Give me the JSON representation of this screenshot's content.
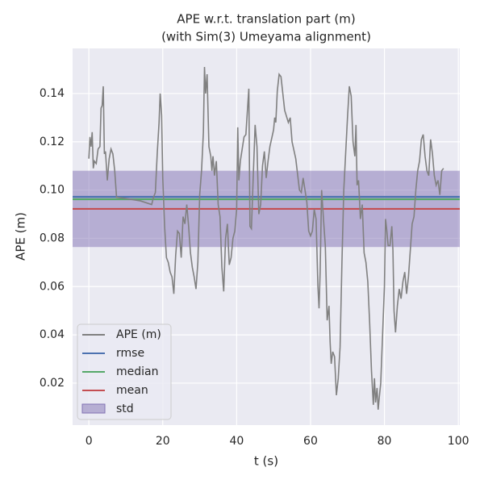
{
  "chart_data": {
    "type": "line",
    "title": "APE w.r.t. translation part (m)",
    "subtitle": "(with Sim(3) Umeyama alignment)",
    "xlabel": "t (s)",
    "ylabel": "APE (m)",
    "xlim": [
      -4.4,
      100.4
    ],
    "ylim": [
      0.0026,
      0.1587
    ],
    "xticks": [
      0,
      20,
      40,
      60,
      80,
      100
    ],
    "yticks": [
      0.02,
      0.04,
      0.06,
      0.08,
      {
        "value": 0.1,
        "label": "0.10"
      },
      0.12,
      0.14
    ],
    "grid": true,
    "legend": "lower left",
    "x": [
      0,
      0.3,
      0.6,
      0.9,
      1.2,
      1.5,
      2,
      2.5,
      3,
      3.3,
      3.6,
      3.9,
      4.2,
      4.5,
      5,
      5.5,
      6,
      6.5,
      7,
      7.5,
      10,
      14,
      17,
      17.5,
      18,
      18.5,
      19,
      19.3,
      19.7,
      20,
      20.5,
      21,
      21.5,
      22,
      22.5,
      23,
      23.5,
      24,
      24.5,
      25,
      25.5,
      26,
      26.5,
      27,
      27.5,
      28,
      28.5,
      29,
      29.5,
      30,
      30.5,
      31,
      31.3,
      31.6,
      32,
      32.5,
      33,
      33.3,
      33.6,
      34,
      34.5,
      35,
      35.5,
      36,
      36.5,
      37,
      37.5,
      38,
      38.5,
      39,
      39.5,
      40,
      40.3,
      40.6,
      41,
      41.5,
      42,
      42.5,
      43,
      43.3,
      43.6,
      44,
      44.5,
      45,
      45.5,
      46,
      46.5,
      47,
      47.5,
      48,
      48.5,
      49,
      50,
      50.3,
      50.6,
      51,
      51.5,
      52,
      52.5,
      53,
      54,
      54.5,
      55,
      56,
      57,
      57.5,
      58,
      58.5,
      59,
      59.5,
      60,
      60.5,
      61,
      61.5,
      62,
      62.3,
      62.6,
      63,
      63.5,
      64,
      64.5,
      65,
      65.3,
      65.6,
      66,
      66.5,
      67,
      67.5,
      68,
      68.5,
      69,
      69.5,
      70,
      70.5,
      71,
      71.5,
      72,
      72.3,
      72.6,
      73,
      73.5,
      74,
      74.5,
      75,
      75.5,
      76,
      76.5,
      77,
      77.3,
      77.6,
      78,
      78.3,
      78.6,
      79,
      79.5,
      80,
      80.3,
      80.6,
      81,
      81.5,
      82,
      82.3,
      82.6,
      83,
      83.5,
      84,
      84.5,
      85,
      85.5,
      86,
      86.5,
      87,
      87.5,
      88,
      88.5,
      89,
      89.5,
      90,
      90.5,
      91,
      91.5,
      92,
      92.5,
      93,
      93.5,
      94,
      94.5,
      95,
      95.5,
      96
    ],
    "series": [
      {
        "name": "APE (m)",
        "color": "#808080",
        "values": [
          0.113,
          0.122,
          0.118,
          0.124,
          0.109,
          0.112,
          0.111,
          0.117,
          0.118,
          0.134,
          0.135,
          0.143,
          0.115,
          0.116,
          0.104,
          0.113,
          0.117,
          0.115,
          0.108,
          0.097,
          0.0965,
          0.0955,
          0.094,
          0.097,
          0.099,
          0.115,
          0.128,
          0.14,
          0.131,
          0.105,
          0.085,
          0.072,
          0.07,
          0.066,
          0.064,
          0.057,
          0.073,
          0.083,
          0.082,
          0.072,
          0.089,
          0.086,
          0.094,
          0.085,
          0.074,
          0.068,
          0.064,
          0.059,
          0.07,
          0.098,
          0.108,
          0.124,
          0.151,
          0.14,
          0.148,
          0.118,
          0.114,
          0.108,
          0.114,
          0.106,
          0.112,
          0.094,
          0.089,
          0.068,
          0.058,
          0.08,
          0.086,
          0.069,
          0.072,
          0.08,
          0.083,
          0.092,
          0.126,
          0.104,
          0.112,
          0.117,
          0.122,
          0.123,
          0.135,
          0.142,
          0.085,
          0.084,
          0.106,
          0.127,
          0.118,
          0.09,
          0.094,
          0.11,
          0.116,
          0.105,
          0.112,
          0.118,
          0.125,
          0.13,
          0.128,
          0.141,
          0.148,
          0.147,
          0.14,
          0.133,
          0.128,
          0.13,
          0.12,
          0.113,
          0.1,
          0.099,
          0.105,
          0.1,
          0.095,
          0.083,
          0.081,
          0.083,
          0.092,
          0.088,
          0.06,
          0.051,
          0.066,
          0.1,
          0.088,
          0.077,
          0.046,
          0.052,
          0.037,
          0.028,
          0.033,
          0.031,
          0.015,
          0.022,
          0.035,
          0.07,
          0.1,
          0.115,
          0.13,
          0.143,
          0.139,
          0.12,
          0.114,
          0.127,
          0.102,
          0.104,
          0.088,
          0.094,
          0.074,
          0.07,
          0.062,
          0.045,
          0.025,
          0.011,
          0.022,
          0.012,
          0.018,
          0.009,
          0.014,
          0.02,
          0.04,
          0.06,
          0.088,
          0.084,
          0.077,
          0.077,
          0.085,
          0.075,
          0.05,
          0.041,
          0.052,
          0.059,
          0.055,
          0.062,
          0.066,
          0.057,
          0.064,
          0.075,
          0.086,
          0.089,
          0.1,
          0.108,
          0.112,
          0.121,
          0.123,
          0.114,
          0.108,
          0.106,
          0.121,
          0.115,
          0.106,
          0.102,
          0.104,
          0.098,
          0.108,
          0.109
        ]
      }
    ],
    "stats": [
      {
        "name": "rmse",
        "color": "#4c72b0",
        "value": 0.0972
      },
      {
        "name": "median",
        "color": "#55a868",
        "value": 0.0962
      },
      {
        "name": "mean",
        "color": "#c44e52",
        "value": 0.0922
      }
    ],
    "std": {
      "name": "std",
      "color": "#8172b3",
      "value": 0.0158
    }
  }
}
